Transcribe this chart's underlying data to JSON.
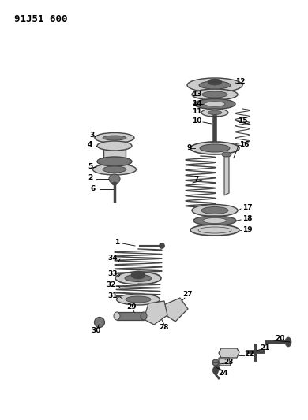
{
  "title_label": "91J51 600",
  "bg_color": "#ffffff",
  "line_color": "#000000",
  "part_color": "#999999",
  "part_color_dark": "#444444",
  "part_color_light": "#cccccc",
  "part_color_mid": "#777777"
}
